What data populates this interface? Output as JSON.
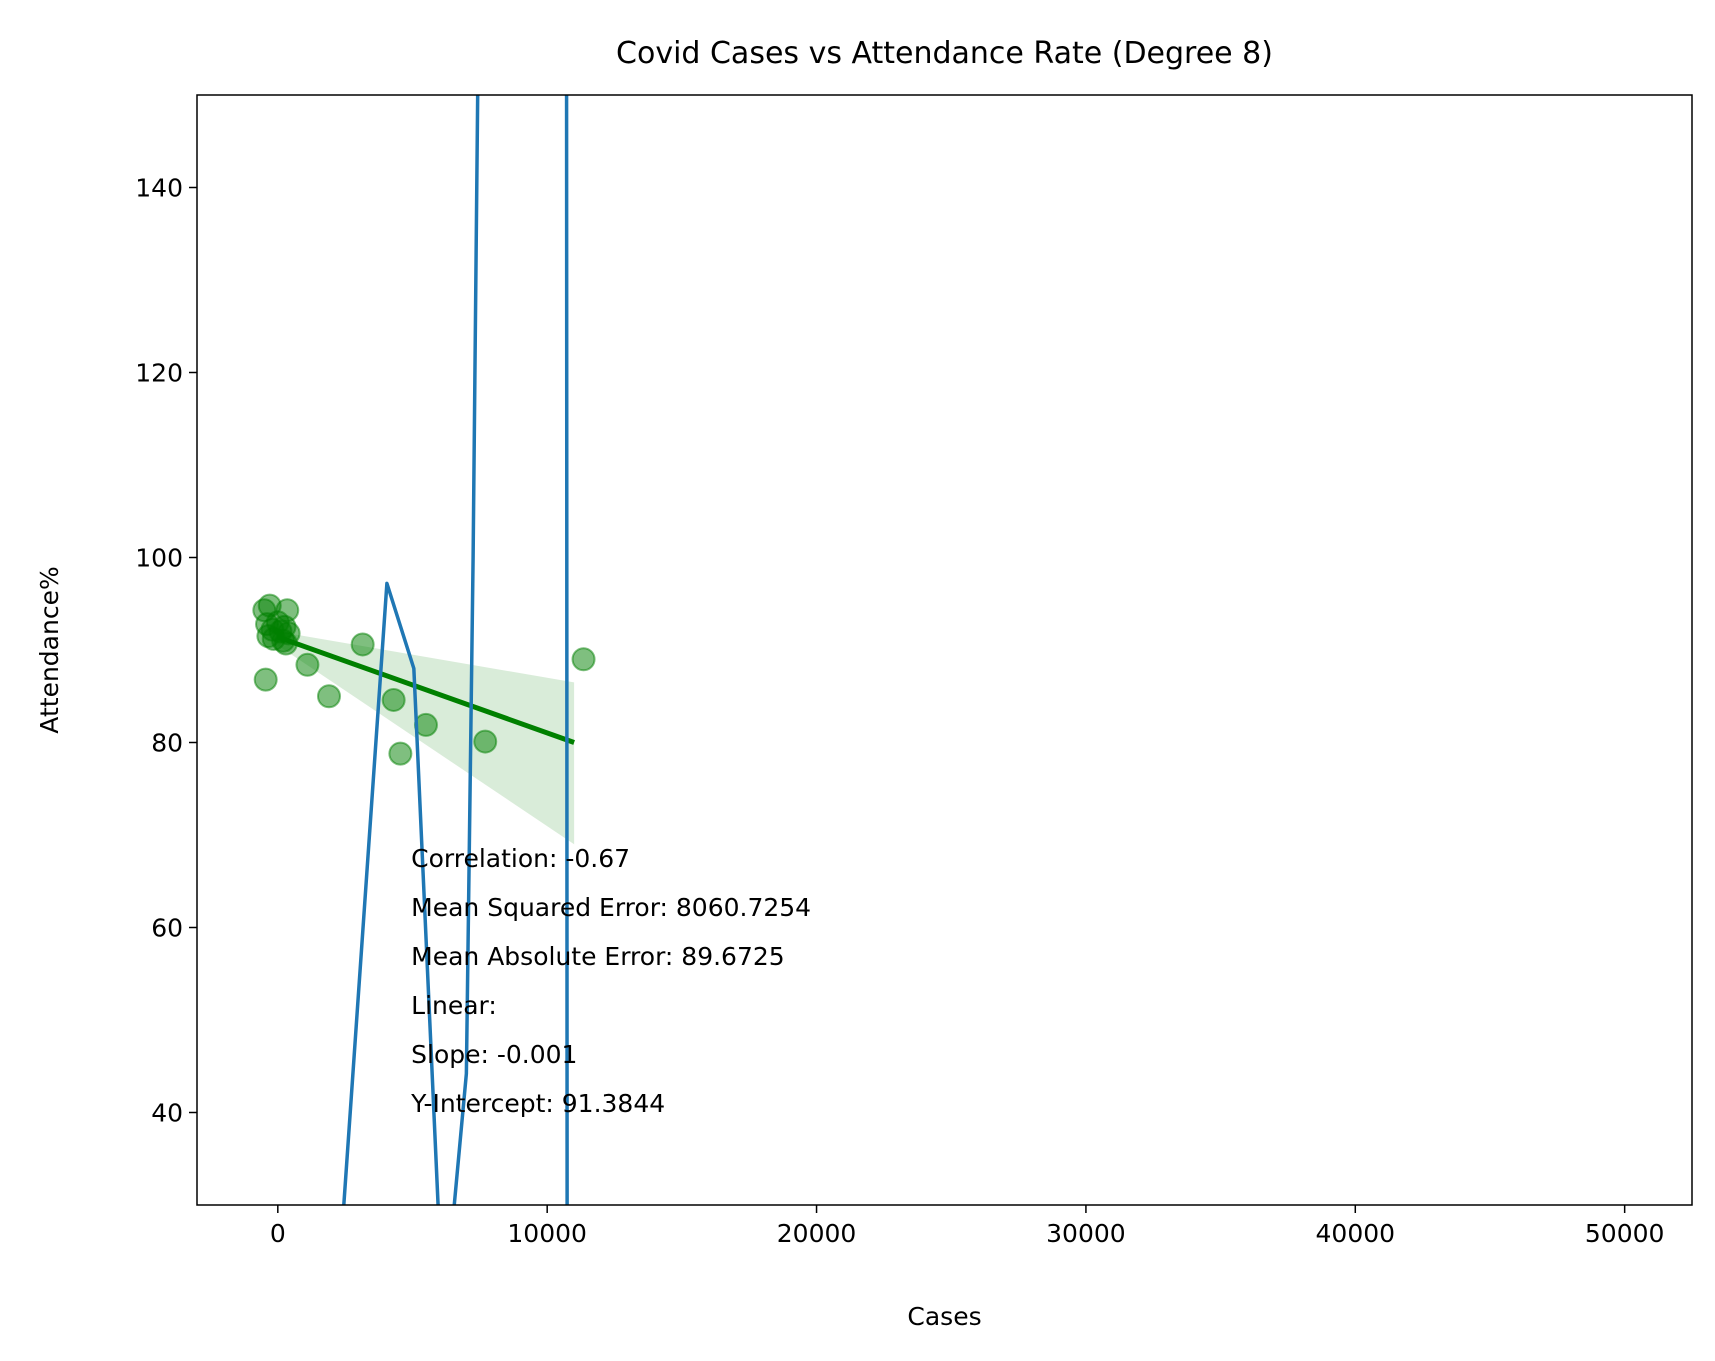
{
  "chart_data": {
    "type": "scatter",
    "title": "Covid Cases vs Attendance Rate (Degree 8)",
    "xlabel": "Cases",
    "ylabel": "Attendance%",
    "xlim": [
      -3000,
      52500
    ],
    "ylim": [
      30,
      150
    ],
    "x_ticks": [
      0,
      10000,
      20000,
      30000,
      40000,
      50000
    ],
    "y_ticks": [
      40,
      60,
      80,
      100,
      120,
      140
    ],
    "grid": false,
    "legend": "none",
    "colors": {
      "scatter": "#008000",
      "regression": "#008000",
      "confidence_band": "#008000",
      "poly_curve": "#1f77b4"
    },
    "scatter": [
      {
        "x": -500,
        "y": 94.3
      },
      {
        "x": -300,
        "y": 94.8
      },
      {
        "x": -400,
        "y": 92.8
      },
      {
        "x": -200,
        "y": 92.2
      },
      {
        "x": -350,
        "y": 91.5
      },
      {
        "x": -150,
        "y": 91.2
      },
      {
        "x": 0,
        "y": 93.0
      },
      {
        "x": 100,
        "y": 92.0
      },
      {
        "x": 200,
        "y": 91.0
      },
      {
        "x": 300,
        "y": 90.7
      },
      {
        "x": 350,
        "y": 94.3
      },
      {
        "x": 400,
        "y": 91.8
      },
      {
        "x": 250,
        "y": 92.5
      },
      {
        "x": -450,
        "y": 86.8
      },
      {
        "x": 1100,
        "y": 88.4
      },
      {
        "x": 1900,
        "y": 85.0
      },
      {
        "x": 3150,
        "y": 90.6
      },
      {
        "x": 4300,
        "y": 84.6
      },
      {
        "x": 4550,
        "y": 78.8
      },
      {
        "x": 5500,
        "y": 81.9
      },
      {
        "x": 7700,
        "y": 80.1
      },
      {
        "x": 11350,
        "y": 89.0
      }
    ],
    "regression_line": {
      "x": [
        0,
        11000
      ],
      "y": [
        91.4,
        80.0
      ]
    },
    "confidence_band": {
      "x": [
        0,
        11000,
        11000,
        0
      ],
      "y": [
        92.0,
        86.5,
        69.0,
        90.5
      ]
    },
    "poly_curve": {
      "x": [
        2450,
        4050,
        5050,
        5950,
        6050,
        6550,
        7000,
        7250,
        7420,
        7450,
        10700,
        10720,
        10740
      ],
      "y": [
        30,
        97.2,
        88.0,
        30,
        28,
        30,
        44.2,
        100,
        150,
        155,
        155,
        150,
        30
      ]
    },
    "annotations": [
      "Correlation: -0.67",
      "Mean Squared Error: 8060.7254",
      "Mean Absolute Error: 89.6725",
      "Linear:",
      "Slope: -0.001",
      "Y-Intercept: 91.3844"
    ],
    "annotation_anchor": {
      "x": 4950,
      "y": 68
    }
  }
}
